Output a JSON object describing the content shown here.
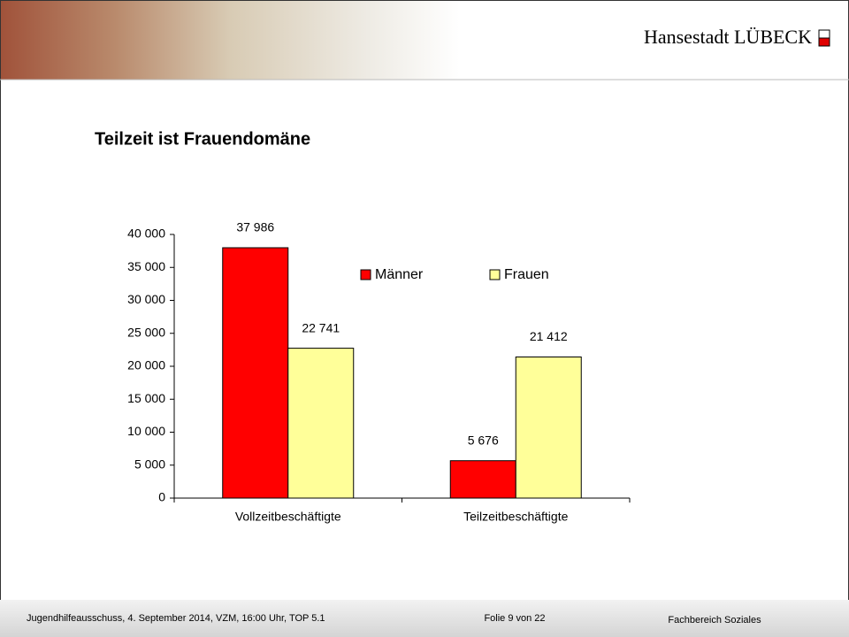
{
  "header": {
    "brand": "Hansestadt LÜBECK"
  },
  "chart_data": {
    "type": "bar",
    "title": "Teilzeit ist Frauendomäne",
    "categories": [
      "Vollzeitbeschäftigte",
      "Teilzeitbeschäftigte"
    ],
    "series": [
      {
        "name": "Männer",
        "color": "#ff0000",
        "values": [
          37986,
          5676
        ],
        "value_labels": [
          "37 986",
          "5 676"
        ]
      },
      {
        "name": "Frauen",
        "color": "#ffff99",
        "values": [
          22741,
          21412
        ],
        "value_labels": [
          "22 741",
          "21 412"
        ]
      }
    ],
    "ylim": [
      0,
      40000
    ],
    "yticks": [
      0,
      {
        "value": 5000,
        "label": "5 000"
      },
      {
        "value": 10000,
        "label": "10 000"
      },
      {
        "value": 15000,
        "label": "15 000"
      },
      {
        "value": 20000,
        "label": "20 000"
      },
      {
        "value": 25000,
        "label": "25 000"
      },
      {
        "value": 30000,
        "label": "30 000"
      },
      {
        "value": 35000,
        "label": "35 000"
      },
      {
        "value": 40000,
        "label": "40 000"
      }
    ],
    "grid": false
  },
  "footer": {
    "meeting": "Jugendhilfeausschuss, 4. September 2014, VZM, 16:00 Uhr, TOP 5.1",
    "slide": "Folie 9 von 22",
    "department": "Fachbereich Soziales"
  }
}
